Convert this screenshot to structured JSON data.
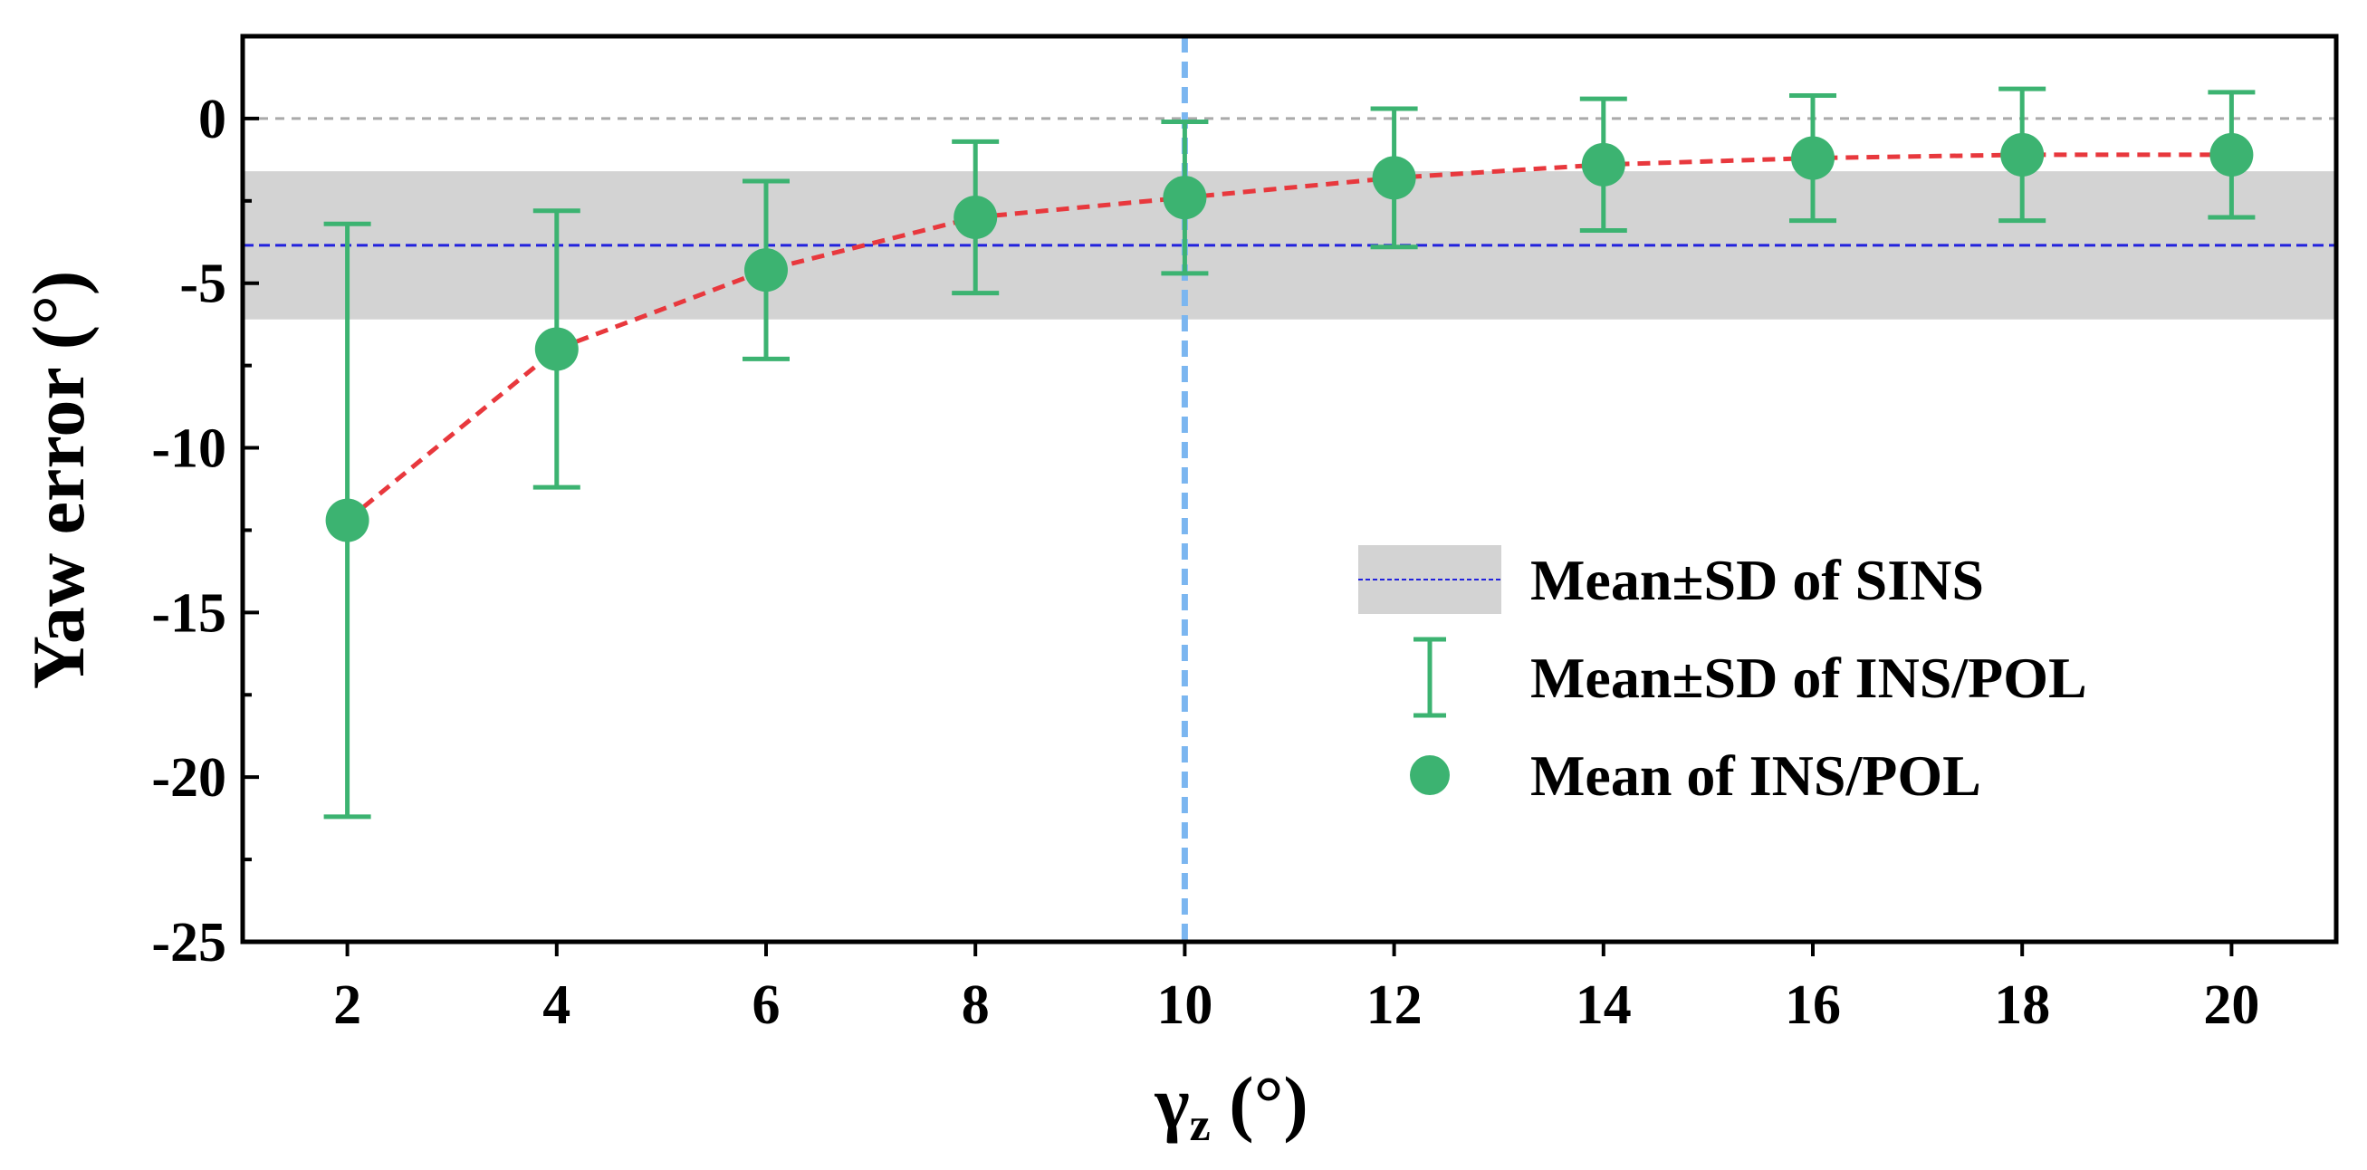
{
  "chart_data": {
    "type": "scatter",
    "title": "",
    "xlabel_main": "γ",
    "xlabel_sub": "z",
    "xlabel_unit": " (°)",
    "ylabel": "Yaw error (°)",
    "xlim": [
      1,
      21
    ],
    "ylim": [
      -25,
      2.5
    ],
    "x_ticks": [
      2,
      4,
      6,
      8,
      10,
      12,
      14,
      16,
      18,
      20
    ],
    "x_tick_labels": [
      "2",
      "4",
      "6",
      "8",
      "10",
      "12",
      "14",
      "16",
      "18",
      "20"
    ],
    "y_ticks": [
      -25,
      -20,
      -15,
      -10,
      -5,
      0
    ],
    "y_tick_labels": [
      "-25",
      "-20",
      "-15",
      "-10",
      "-5",
      "0"
    ],
    "y_minor_ticks": [
      -22.5,
      -17.5,
      -12.5,
      -7.5,
      -2.5
    ],
    "series": [
      {
        "name": "Mean of INS/POL",
        "x": [
          2,
          4,
          6,
          8,
          10,
          12,
          14,
          16,
          18,
          20
        ],
        "y": [
          -12.2,
          -7.0,
          -4.6,
          -3.0,
          -2.4,
          -1.8,
          -1.4,
          -1.2,
          -1.1,
          -1.1
        ],
        "sd": [
          9.0,
          4.2,
          2.7,
          2.3,
          2.3,
          2.1,
          2.0,
          1.9,
          2.0,
          1.9
        ],
        "color": "#3cb371",
        "line_color": "#e8383d"
      }
    ],
    "sins_band": {
      "mean": -3.85,
      "sd": 2.25,
      "band_color": "#d3d3d3",
      "line_color": "#2222dd"
    },
    "zero_line": {
      "y": 0,
      "color": "#aaaaaa"
    },
    "vertical_marker": {
      "x": 10,
      "color": "#7bb6f0"
    },
    "legend": {
      "position": "center-right",
      "entries": [
        {
          "label": "Mean±SD  of SINS"
        },
        {
          "label": "Mean±SD of INS/POL"
        },
        {
          "label": "Mean of INS/POL"
        }
      ]
    }
  }
}
